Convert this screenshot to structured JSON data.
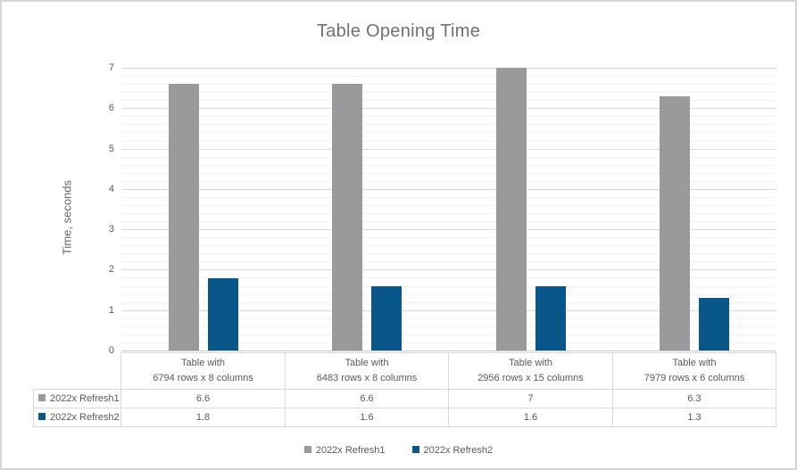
{
  "chart_data": {
    "type": "bar",
    "title": "Table Opening Time",
    "xlabel": "",
    "ylabel": "Time, seconds",
    "ylim": [
      0,
      7
    ],
    "y_major_step": 1,
    "y_minor_step": 0.2,
    "y_ticks": [
      "0",
      "1",
      "2",
      "3",
      "4",
      "5",
      "6",
      "7"
    ],
    "grid": true,
    "legend_position": "bottom",
    "categories": [
      {
        "line1": "Table with",
        "line2": "6794 rows x 8 columns"
      },
      {
        "line1": "Table with",
        "line2": "6483 rows x 8 columns"
      },
      {
        "line1": "Table with",
        "line2": "2956 rows x 15 columns"
      },
      {
        "line1": "Table with",
        "line2": "7979 rows x 6 columns"
      }
    ],
    "series": [
      {
        "name": "2022x Refresh1",
        "color": "#9a9a9c",
        "values": [
          6.6,
          6.6,
          7,
          6.3
        ],
        "display": [
          "6.6",
          "6.6",
          "7",
          "6.3"
        ]
      },
      {
        "name": "2022x Refresh2",
        "color": "#09578a",
        "values": [
          1.8,
          1.6,
          1.6,
          1.3
        ],
        "display": [
          "1.8",
          "1.6",
          "1.6",
          "1.3"
        ]
      }
    ]
  },
  "colors": {
    "title_text": "#707070",
    "axis_text": "#595959",
    "major_grid": "#d9d9d9",
    "minor_grid": "#f2f2f2",
    "table_border": "#d9d9d9",
    "frame_border": "#d6d6d6"
  }
}
